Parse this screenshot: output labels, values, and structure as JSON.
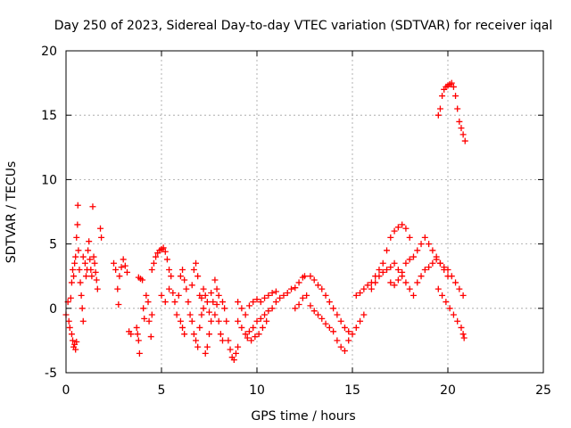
{
  "chart_data": {
    "type": "scatter",
    "title": "Day 250 of 2023, Sidereal Day-to-day VTEC variation (SDTVAR) for receiver iqal",
    "xlabel": "GPS time / hours",
    "ylabel": "SDTVAR / TECUs",
    "xlim": [
      0,
      25
    ],
    "ylim": [
      -5,
      20
    ],
    "xticks": [
      0,
      5,
      10,
      15,
      20,
      25
    ],
    "yticks": [
      -5,
      0,
      5,
      10,
      15,
      20
    ],
    "xtick_labels": [
      "0",
      "5",
      "10",
      "15",
      "20",
      "25"
    ],
    "ytick_labels": [
      "-5",
      "0",
      "5",
      "10",
      "15",
      "20"
    ],
    "grid": true,
    "marker": "+",
    "color": "#ff0000",
    "series": [
      {
        "name": "SDTVAR",
        "points": [
          [
            0.0,
            -0.5
          ],
          [
            0.1,
            0.5
          ],
          [
            0.15,
            -1.0
          ],
          [
            0.2,
            -1.5
          ],
          [
            0.25,
            0.8
          ],
          [
            0.3,
            -2.0
          ],
          [
            0.35,
            -2.5
          ],
          [
            0.4,
            -3.0
          ],
          [
            0.45,
            -2.8
          ],
          [
            0.5,
            -3.2
          ],
          [
            0.55,
            -2.6
          ],
          [
            0.3,
            2.0
          ],
          [
            0.35,
            3.0
          ],
          [
            0.4,
            2.5
          ],
          [
            0.45,
            3.5
          ],
          [
            0.5,
            4.0
          ],
          [
            0.55,
            5.5
          ],
          [
            0.6,
            6.5
          ],
          [
            0.62,
            8.0
          ],
          [
            0.65,
            4.5
          ],
          [
            0.7,
            3.0
          ],
          [
            0.75,
            2.0
          ],
          [
            0.8,
            1.0
          ],
          [
            0.85,
            0.0
          ],
          [
            0.9,
            -1.0
          ],
          [
            0.9,
            4.0
          ],
          [
            1.0,
            3.5
          ],
          [
            1.05,
            2.5
          ],
          [
            1.1,
            3.0
          ],
          [
            1.15,
            4.5
          ],
          [
            1.2,
            5.2
          ],
          [
            1.25,
            3.8
          ],
          [
            1.3,
            3.0
          ],
          [
            1.35,
            2.5
          ],
          [
            1.4,
            7.9
          ],
          [
            1.45,
            4.0
          ],
          [
            1.5,
            3.5
          ],
          [
            1.55,
            2.8
          ],
          [
            1.6,
            2.2
          ],
          [
            1.65,
            1.5
          ],
          [
            1.8,
            6.2
          ],
          [
            1.85,
            5.5
          ],
          [
            2.5,
            3.5
          ],
          [
            2.6,
            3.0
          ],
          [
            2.7,
            1.5
          ],
          [
            2.75,
            0.3
          ],
          [
            2.8,
            2.5
          ],
          [
            2.9,
            3.2
          ],
          [
            3.0,
            3.8
          ],
          [
            3.1,
            3.3
          ],
          [
            3.2,
            2.8
          ],
          [
            3.3,
            -1.8
          ],
          [
            3.4,
            -2.0
          ],
          [
            3.7,
            -1.5
          ],
          [
            3.75,
            -2.0
          ],
          [
            3.8,
            -2.5
          ],
          [
            3.85,
            -3.5
          ],
          [
            3.8,
            2.4
          ],
          [
            3.9,
            2.3
          ],
          [
            4.0,
            2.2
          ],
          [
            4.05,
            0.0
          ],
          [
            4.1,
            -0.8
          ],
          [
            4.2,
            1.0
          ],
          [
            4.3,
            0.5
          ],
          [
            4.35,
            -1.0
          ],
          [
            4.45,
            -2.2
          ],
          [
            4.5,
            -0.5
          ],
          [
            4.5,
            3.0
          ],
          [
            4.6,
            3.5
          ],
          [
            4.7,
            4.0
          ],
          [
            4.8,
            4.3
          ],
          [
            4.9,
            4.5
          ],
          [
            5.0,
            4.6
          ],
          [
            5.1,
            4.7
          ],
          [
            5.2,
            4.4
          ],
          [
            5.3,
            3.8
          ],
          [
            5.4,
            3.0
          ],
          [
            5.0,
            1.0
          ],
          [
            5.2,
            0.5
          ],
          [
            5.4,
            1.5
          ],
          [
            5.5,
            2.5
          ],
          [
            5.6,
            1.2
          ],
          [
            5.7,
            0.5
          ],
          [
            5.8,
            -0.5
          ],
          [
            5.9,
            1.0
          ],
          [
            6.0,
            -1.0
          ],
          [
            6.1,
            -1.5
          ],
          [
            6.2,
            -2.0
          ],
          [
            6.0,
            2.5
          ],
          [
            6.1,
            3.0
          ],
          [
            6.2,
            2.2
          ],
          [
            6.3,
            1.5
          ],
          [
            6.4,
            0.5
          ],
          [
            6.5,
            -0.5
          ],
          [
            6.6,
            1.8
          ],
          [
            6.7,
            3.0
          ],
          [
            6.8,
            3.5
          ],
          [
            6.9,
            2.5
          ],
          [
            7.0,
            1.0
          ],
          [
            6.6,
            -1.0
          ],
          [
            6.7,
            -2.0
          ],
          [
            6.8,
            -2.5
          ],
          [
            6.9,
            -3.0
          ],
          [
            7.0,
            -1.5
          ],
          [
            7.1,
            -0.5
          ],
          [
            7.2,
            0.0
          ],
          [
            7.3,
            -3.5
          ],
          [
            7.4,
            -3.0
          ],
          [
            7.5,
            -2.0
          ],
          [
            7.6,
            -1.0
          ],
          [
            7.1,
            0.8
          ],
          [
            7.2,
            1.5
          ],
          [
            7.3,
            1.0
          ],
          [
            7.4,
            0.5
          ],
          [
            7.5,
            -0.3
          ],
          [
            7.6,
            1.2
          ],
          [
            7.7,
            0.5
          ],
          [
            7.8,
            -0.5
          ],
          [
            7.9,
            0.3
          ],
          [
            8.0,
            -1.0
          ],
          [
            8.1,
            -2.0
          ],
          [
            8.2,
            -2.5
          ],
          [
            7.8,
            2.2
          ],
          [
            7.9,
            1.5
          ],
          [
            8.0,
            1.0
          ],
          [
            8.2,
            0.5
          ],
          [
            8.3,
            0.0
          ],
          [
            8.4,
            -1.0
          ],
          [
            8.5,
            -2.5
          ],
          [
            8.6,
            -3.2
          ],
          [
            8.7,
            -3.8
          ],
          [
            8.8,
            -4.0
          ],
          [
            8.9,
            -3.5
          ],
          [
            9.0,
            -3.0
          ],
          [
            9.0,
            -1.0
          ],
          [
            9.2,
            -1.5
          ],
          [
            9.4,
            -2.0
          ],
          [
            9.6,
            -1.8
          ],
          [
            9.8,
            -1.5
          ],
          [
            10.0,
            -1.0
          ],
          [
            10.2,
            -0.8
          ],
          [
            10.4,
            -0.5
          ],
          [
            10.6,
            -0.2
          ],
          [
            10.8,
            0.0
          ],
          [
            9.0,
            0.5
          ],
          [
            9.2,
            0.0
          ],
          [
            9.4,
            -0.5
          ],
          [
            9.6,
            0.2
          ],
          [
            9.8,
            0.5
          ],
          [
            10.0,
            0.7
          ],
          [
            10.2,
            0.5
          ],
          [
            10.4,
            0.8
          ],
          [
            10.6,
            1.0
          ],
          [
            10.8,
            1.2
          ],
          [
            11.0,
            1.3
          ],
          [
            9.5,
            -2.3
          ],
          [
            9.7,
            -2.5
          ],
          [
            9.9,
            -2.2
          ],
          [
            10.1,
            -2.0
          ],
          [
            10.3,
            -1.5
          ],
          [
            10.5,
            -1.0
          ],
          [
            11.0,
            0.5
          ],
          [
            11.2,
            0.8
          ],
          [
            11.4,
            1.0
          ],
          [
            11.6,
            1.2
          ],
          [
            11.8,
            1.5
          ],
          [
            12.0,
            1.6
          ],
          [
            12.2,
            2.0
          ],
          [
            12.4,
            2.4
          ],
          [
            12.5,
            2.5
          ],
          [
            12.0,
            0.0
          ],
          [
            12.2,
            0.3
          ],
          [
            12.4,
            0.8
          ],
          [
            12.6,
            1.0
          ],
          [
            12.8,
            2.5
          ],
          [
            13.0,
            2.2
          ],
          [
            13.2,
            1.8
          ],
          [
            13.4,
            1.5
          ],
          [
            13.6,
            1.0
          ],
          [
            12.8,
            0.2
          ],
          [
            13.0,
            -0.2
          ],
          [
            13.2,
            -0.5
          ],
          [
            13.4,
            -0.8
          ],
          [
            13.6,
            -1.2
          ],
          [
            13.8,
            -1.5
          ],
          [
            14.0,
            -1.8
          ],
          [
            14.2,
            -2.5
          ],
          [
            14.4,
            -3.0
          ],
          [
            14.6,
            -3.3
          ],
          [
            14.8,
            -2.5
          ],
          [
            13.8,
            0.5
          ],
          [
            14.0,
            0.0
          ],
          [
            14.2,
            -0.5
          ],
          [
            14.4,
            -1.0
          ],
          [
            14.6,
            -1.5
          ],
          [
            14.8,
            -1.8
          ],
          [
            15.0,
            -2.0
          ],
          [
            15.2,
            -1.5
          ],
          [
            15.4,
            -1.0
          ],
          [
            15.6,
            -0.5
          ],
          [
            15.2,
            1.0
          ],
          [
            15.4,
            1.2
          ],
          [
            15.6,
            1.5
          ],
          [
            15.8,
            1.8
          ],
          [
            16.0,
            2.0
          ],
          [
            16.2,
            2.5
          ],
          [
            16.4,
            3.0
          ],
          [
            16.6,
            3.5
          ],
          [
            16.8,
            4.5
          ],
          [
            17.0,
            5.5
          ],
          [
            17.2,
            6.0
          ],
          [
            17.4,
            6.3
          ],
          [
            17.6,
            6.5
          ],
          [
            17.8,
            6.2
          ],
          [
            18.0,
            5.5
          ],
          [
            16.0,
            1.5
          ],
          [
            16.2,
            2.0
          ],
          [
            16.4,
            2.5
          ],
          [
            16.6,
            2.8
          ],
          [
            16.8,
            3.0
          ],
          [
            17.0,
            3.2
          ],
          [
            17.2,
            3.5
          ],
          [
            17.4,
            3.0
          ],
          [
            17.6,
            2.5
          ],
          [
            17.8,
            2.0
          ],
          [
            18.0,
            1.5
          ],
          [
            18.2,
            1.0
          ],
          [
            17.0,
            2.0
          ],
          [
            17.2,
            1.8
          ],
          [
            17.4,
            2.2
          ],
          [
            17.6,
            2.8
          ],
          [
            17.8,
            3.5
          ],
          [
            18.0,
            3.8
          ],
          [
            18.2,
            4.0
          ],
          [
            18.4,
            4.5
          ],
          [
            18.6,
            5.0
          ],
          [
            18.8,
            5.5
          ],
          [
            19.0,
            5.0
          ],
          [
            19.2,
            4.5
          ],
          [
            19.4,
            4.0
          ],
          [
            19.6,
            3.5
          ],
          [
            19.8,
            3.0
          ],
          [
            20.0,
            2.5
          ],
          [
            18.4,
            2.0
          ],
          [
            18.6,
            2.5
          ],
          [
            18.8,
            3.0
          ],
          [
            19.0,
            3.2
          ],
          [
            19.2,
            3.5
          ],
          [
            19.4,
            3.8
          ],
          [
            19.6,
            3.5
          ],
          [
            19.8,
            3.2
          ],
          [
            20.0,
            3.0
          ],
          [
            20.2,
            2.5
          ],
          [
            20.4,
            2.0
          ],
          [
            20.6,
            1.5
          ],
          [
            20.8,
            1.0
          ],
          [
            19.5,
            1.5
          ],
          [
            19.7,
            1.0
          ],
          [
            19.9,
            0.5
          ],
          [
            20.1,
            0.0
          ],
          [
            20.3,
            -0.5
          ],
          [
            20.5,
            -1.0
          ],
          [
            20.7,
            -1.5
          ],
          [
            20.8,
            -2.0
          ],
          [
            20.85,
            -2.3
          ],
          [
            19.5,
            15.0
          ],
          [
            19.6,
            15.5
          ],
          [
            19.7,
            16.5
          ],
          [
            19.8,
            17.0
          ],
          [
            19.9,
            17.2
          ],
          [
            20.0,
            17.3
          ],
          [
            20.1,
            17.4
          ],
          [
            20.2,
            17.5
          ],
          [
            20.3,
            17.2
          ],
          [
            20.4,
            16.5
          ],
          [
            20.5,
            15.5
          ],
          [
            20.6,
            14.5
          ],
          [
            20.7,
            14.0
          ],
          [
            20.8,
            13.5
          ],
          [
            20.9,
            13.0
          ]
        ]
      }
    ]
  }
}
